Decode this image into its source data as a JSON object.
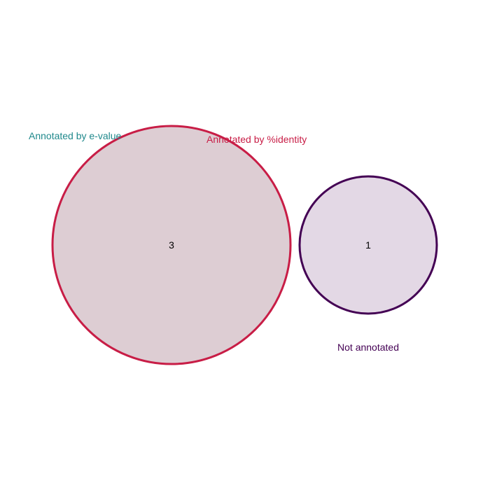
{
  "sets": [
    {
      "key": "evalue",
      "label": "Annotated by e-value",
      "color": "#20898c"
    },
    {
      "key": "identity",
      "label": "Annotated by %identity",
      "color": "#c81d46"
    },
    {
      "key": "not_annotated",
      "label": "Not annotated",
      "color": "#440154"
    }
  ],
  "regions": {
    "evalue_identity": "3",
    "not_annotated": "1"
  },
  "styles": {
    "circle_big_fill": "#ddcdd3",
    "circle_big_stroke": "#c81d46",
    "circle_small_fill": "#e3d8e5",
    "circle_small_stroke": "#440154"
  }
}
